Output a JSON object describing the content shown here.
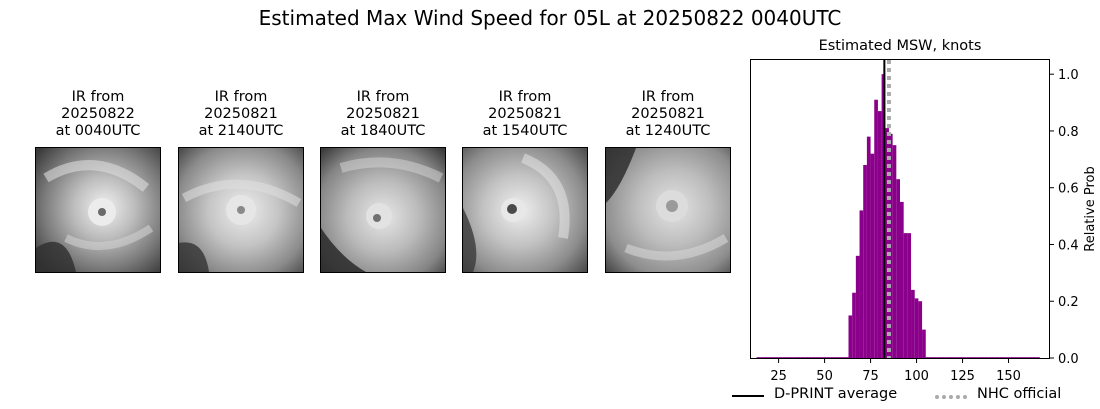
{
  "figure": {
    "title": "Estimated Max Wind Speed for 05L at 20250822 0040UTC"
  },
  "panels": [
    {
      "label": "IR from\n20250822\nat 0040UTC",
      "image": "ir-satellite-storm-1"
    },
    {
      "label": "IR from\n20250821\nat 2140UTC",
      "image": "ir-satellite-storm-2"
    },
    {
      "label": "IR from\n20250821\nat 1840UTC",
      "image": "ir-satellite-storm-3"
    },
    {
      "label": "IR from\n20250821\nat 1540UTC",
      "image": "ir-satellite-storm-4"
    },
    {
      "label": "IR from\n20250821\nat 1240UTC",
      "image": "ir-satellite-storm-5"
    }
  ],
  "chart_data": {
    "type": "bar",
    "title": "Estimated MSW, knots",
    "xlabel": "",
    "ylabel": "Relative Prob",
    "xlim": [
      10,
      172
    ],
    "ylim": [
      0,
      1.05
    ],
    "xticks": [
      25,
      50,
      75,
      100,
      125,
      150
    ],
    "yticks": [
      0.0,
      0.2,
      0.4,
      0.6,
      0.8,
      1.0
    ],
    "ytick_labels": [
      "0.0",
      "0.2",
      "0.4",
      "0.6",
      "0.8",
      "1.0"
    ],
    "yaxis_side": "right",
    "bin_width": 2,
    "bar_color": "#8b008b",
    "bins": [
      {
        "x": 14,
        "y": 0.003
      },
      {
        "x": 16,
        "y": 0.003
      },
      {
        "x": 18,
        "y": 0.003
      },
      {
        "x": 20,
        "y": 0.003
      },
      {
        "x": 22,
        "y": 0.003
      },
      {
        "x": 24,
        "y": 0.003
      },
      {
        "x": 26,
        "y": 0.003
      },
      {
        "x": 28,
        "y": 0.003
      },
      {
        "x": 30,
        "y": 0.003
      },
      {
        "x": 32,
        "y": 0.003
      },
      {
        "x": 34,
        "y": 0.003
      },
      {
        "x": 36,
        "y": 0.003
      },
      {
        "x": 38,
        "y": 0.003
      },
      {
        "x": 40,
        "y": 0.003
      },
      {
        "x": 42,
        "y": 0.003
      },
      {
        "x": 44,
        "y": 0.003
      },
      {
        "x": 46,
        "y": 0.003
      },
      {
        "x": 48,
        "y": 0.003
      },
      {
        "x": 50,
        "y": 0.003
      },
      {
        "x": 52,
        "y": 0.003
      },
      {
        "x": 54,
        "y": 0.003
      },
      {
        "x": 56,
        "y": 0.003
      },
      {
        "x": 58,
        "y": 0.003
      },
      {
        "x": 60,
        "y": 0.003
      },
      {
        "x": 62,
        "y": 0.003
      },
      {
        "x": 64,
        "y": 0.15
      },
      {
        "x": 66,
        "y": 0.23
      },
      {
        "x": 68,
        "y": 0.36
      },
      {
        "x": 70,
        "y": 0.52
      },
      {
        "x": 72,
        "y": 0.68
      },
      {
        "x": 74,
        "y": 0.78
      },
      {
        "x": 76,
        "y": 0.72
      },
      {
        "x": 78,
        "y": 0.91
      },
      {
        "x": 80,
        "y": 0.87
      },
      {
        "x": 82,
        "y": 1.0
      },
      {
        "x": 84,
        "y": 0.81
      },
      {
        "x": 86,
        "y": 0.79
      },
      {
        "x": 88,
        "y": 0.75
      },
      {
        "x": 90,
        "y": 0.63
      },
      {
        "x": 92,
        "y": 0.55
      },
      {
        "x": 94,
        "y": 0.44
      },
      {
        "x": 96,
        "y": 0.44
      },
      {
        "x": 98,
        "y": 0.24
      },
      {
        "x": 100,
        "y": 0.21
      },
      {
        "x": 102,
        "y": 0.2
      },
      {
        "x": 104,
        "y": 0.1
      },
      {
        "x": 106,
        "y": 0.003
      },
      {
        "x": 108,
        "y": 0.003
      },
      {
        "x": 110,
        "y": 0.003
      },
      {
        "x": 112,
        "y": 0.003
      },
      {
        "x": 114,
        "y": 0.003
      },
      {
        "x": 116,
        "y": 0.003
      },
      {
        "x": 118,
        "y": 0.003
      },
      {
        "x": 120,
        "y": 0.003
      },
      {
        "x": 122,
        "y": 0.003
      },
      {
        "x": 124,
        "y": 0.003
      },
      {
        "x": 126,
        "y": 0.003
      },
      {
        "x": 128,
        "y": 0.003
      },
      {
        "x": 130,
        "y": 0.003
      },
      {
        "x": 132,
        "y": 0.003
      },
      {
        "x": 134,
        "y": 0.003
      },
      {
        "x": 136,
        "y": 0.003
      },
      {
        "x": 138,
        "y": 0.003
      },
      {
        "x": 140,
        "y": 0.003
      },
      {
        "x": 142,
        "y": 0.003
      },
      {
        "x": 144,
        "y": 0.003
      },
      {
        "x": 146,
        "y": 0.003
      },
      {
        "x": 148,
        "y": 0.003
      },
      {
        "x": 150,
        "y": 0.003
      },
      {
        "x": 152,
        "y": 0.003
      },
      {
        "x": 154,
        "y": 0.003
      },
      {
        "x": 156,
        "y": 0.003
      },
      {
        "x": 158,
        "y": 0.003
      },
      {
        "x": 160,
        "y": 0.003
      },
      {
        "x": 162,
        "y": 0.003
      },
      {
        "x": 164,
        "y": 0.003
      },
      {
        "x": 166,
        "y": 0.003
      }
    ],
    "reference_lines": [
      {
        "name": "D-PRINT average",
        "x": 82.5,
        "color": "#000000",
        "style": "solid"
      },
      {
        "name": "NHC official",
        "x": 85,
        "color": "#aaaaaa",
        "style": "dotted"
      }
    ],
    "legend": {
      "placement": "bottom"
    }
  }
}
